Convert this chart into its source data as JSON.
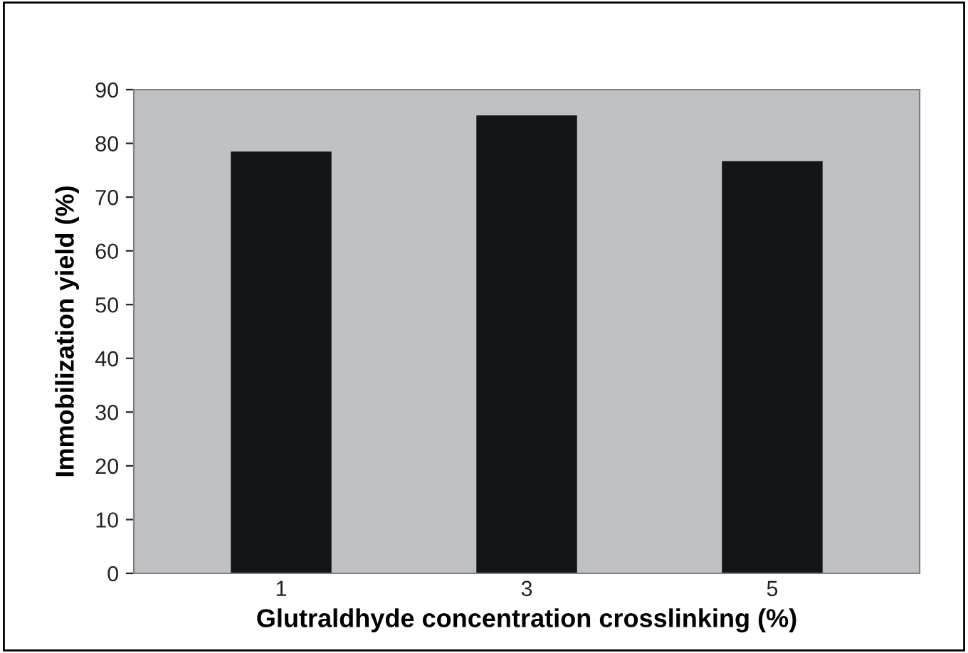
{
  "chart_data": {
    "type": "bar",
    "xlabel": "Glutraldhyde concentration crosslinking (%)",
    "ylabel": "Immobilization yield (%)",
    "categories": [
      "1",
      "3",
      "5"
    ],
    "values": [
      78.5,
      85.2,
      76.7
    ],
    "color": "#121619",
    "ylim": [
      0,
      90
    ],
    "yticks": [
      0,
      10,
      20,
      30,
      40,
      50,
      60,
      70,
      80,
      90
    ],
    "grid": false,
    "legend": false
  }
}
